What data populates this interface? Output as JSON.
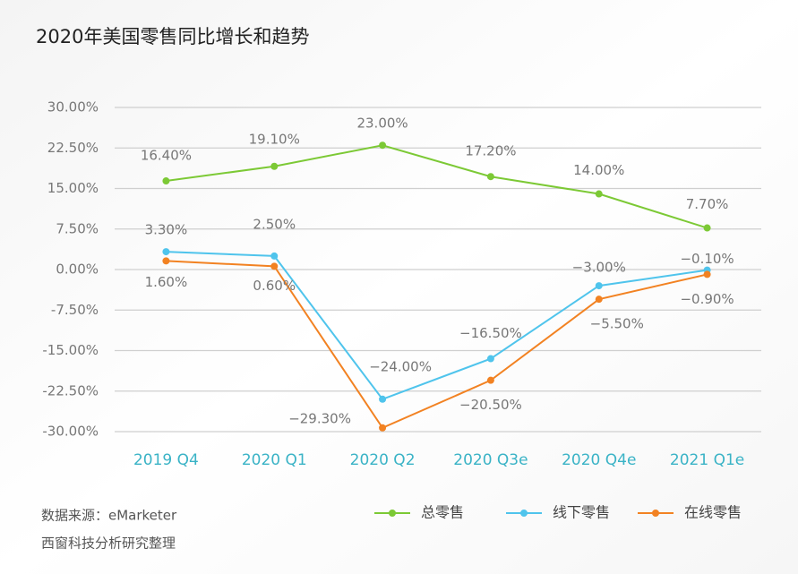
{
  "chart_data": {
    "type": "line",
    "title": "2020年美国零售同比增长和趋势",
    "categories": [
      "2019 Q4",
      "2020 Q1",
      "2020 Q2",
      "2020 Q3e",
      "2020 Q4e",
      "2021 Q1e"
    ],
    "series": [
      {
        "name": "总零售",
        "color": "#7cc935",
        "values": [
          16.4,
          19.1,
          23.0,
          17.2,
          14.0,
          7.7
        ],
        "value_labels": [
          "16.40%",
          "19.10%",
          "23.00%",
          "17.20%",
          "14.00%",
          "7.70%"
        ]
      },
      {
        "name": "线下零售",
        "color": "#4fc4ec",
        "values": [
          3.3,
          2.5,
          -24.0,
          -16.5,
          -3.0,
          -0.1
        ],
        "value_labels": [
          "3.30%",
          "2.50%",
          "−24.00%",
          "−16.50%",
          "−3.00%",
          "−0.10%"
        ]
      },
      {
        "name": "在线零售",
        "color": "#f28222",
        "values": [
          1.6,
          0.6,
          -29.3,
          -20.5,
          -5.5,
          -0.9
        ],
        "value_labels": [
          "1.60%",
          "0.60%",
          "−29.30%",
          "−20.50%",
          "−5.50%",
          "−0.90%"
        ]
      }
    ],
    "ylim": [
      -30,
      30
    ],
    "yticks": [
      {
        "value": 30,
        "label": "30.00%"
      },
      {
        "value": 22.5,
        "label": "22.50%"
      },
      {
        "value": 15,
        "label": "15.00%"
      },
      {
        "value": 7.5,
        "label": "7.50%"
      },
      {
        "value": 0,
        "label": "0.00%"
      },
      {
        "value": -7.5,
        "label": "-7.50%"
      },
      {
        "value": -15,
        "label": "-15.00%"
      },
      {
        "value": -22.5,
        "label": "-22.50%"
      },
      {
        "value": -30,
        "label": "-30.00%"
      }
    ],
    "grid": true,
    "legend": "bottom-right",
    "notes": [
      "数据来源：eMarketer",
      "西窗科技分析研究整理"
    ]
  }
}
